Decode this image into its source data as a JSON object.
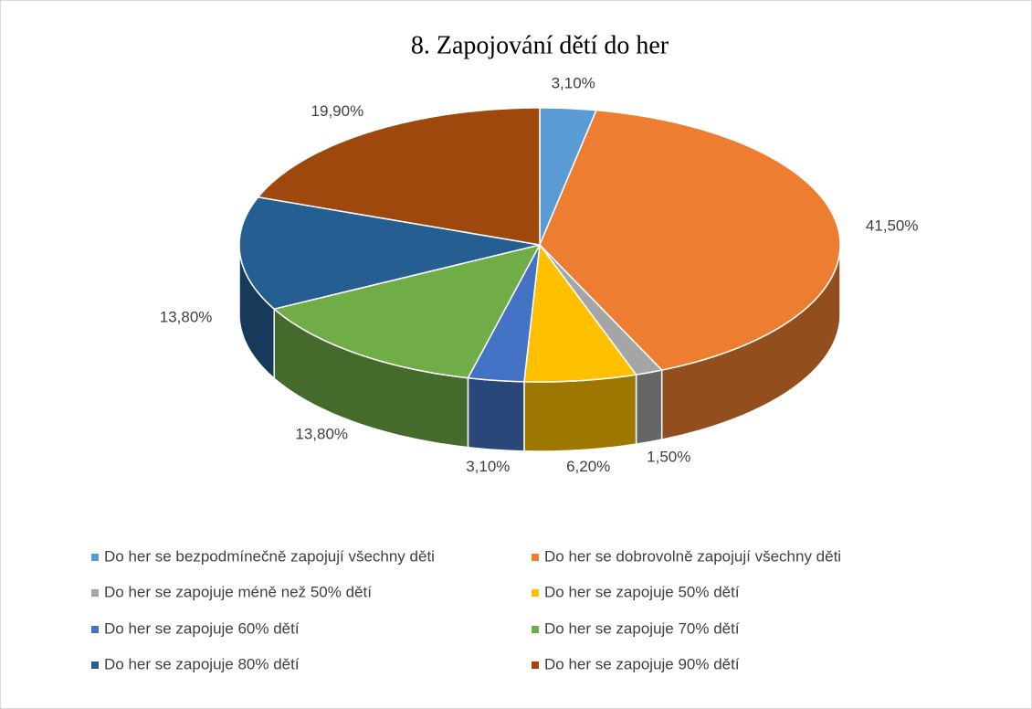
{
  "chart_data": {
    "type": "pie3d",
    "title": "8. Zapojování dětí do her",
    "categories": [
      "Do her se bezpodmínečně zapojují všechny děti",
      "Do her se dobrovolně zapojují všechny děti",
      "Do her se zapojuje méně než 50% dětí",
      "Do her se zapojuje 50% dětí",
      "Do her se zapojuje 60% dětí",
      "Do her se zapojuje 70% dětí",
      "Do her se zapojuje 80% dětí",
      "Do her se zapojuje 90% dětí"
    ],
    "values": [
      3.1,
      41.5,
      1.5,
      6.2,
      3.1,
      13.8,
      13.8,
      19.9
    ],
    "value_labels": [
      "3,10%",
      "41,50%",
      "1,50%",
      "6,20%",
      "3,10%",
      "13,80%",
      "13,80%",
      "19,90%"
    ],
    "colors": [
      "#5b9bd5",
      "#ed7d31",
      "#a5a5a5",
      "#ffc000",
      "#4472c4",
      "#70ad47",
      "#255e91",
      "#9e480e"
    ],
    "legend": "bottom"
  }
}
